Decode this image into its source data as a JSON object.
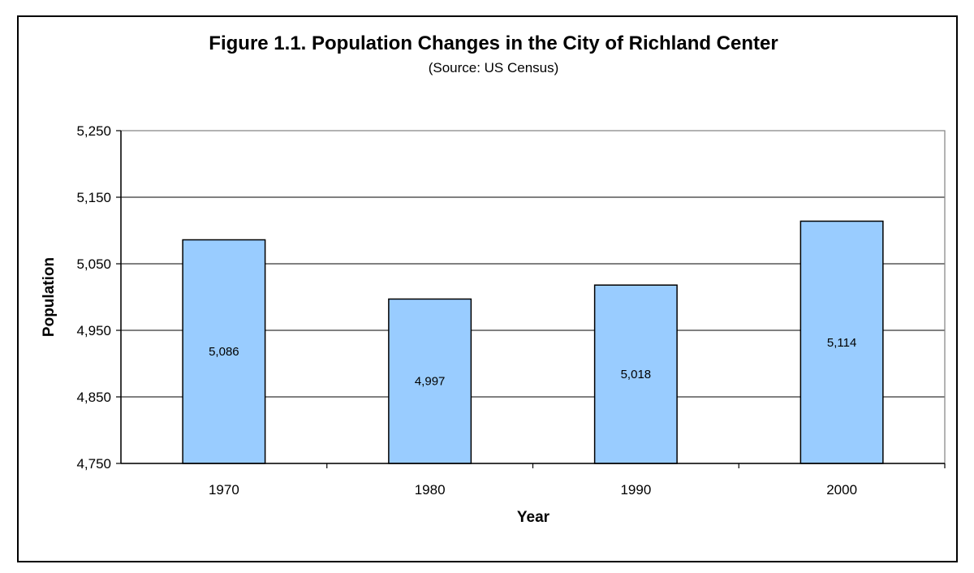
{
  "chart_data": {
    "type": "bar",
    "title": "Figure 1.1. Population Changes in the City of Richland Center",
    "subtitle": "(Source: US Census)",
    "categories": [
      "1970",
      "1980",
      "1990",
      "2000"
    ],
    "values": [
      5086,
      4997,
      5018,
      5114
    ],
    "data_labels": [
      "5,086",
      "4,997",
      "5,018",
      "5,114"
    ],
    "xlabel": "Year",
    "ylabel": "Population",
    "ylim": [
      4750,
      5250
    ],
    "yticks": [
      4750,
      4850,
      4950,
      5050,
      5150,
      5250
    ],
    "ytick_labels": [
      "4,750",
      "4,850",
      "4,950",
      "5,050",
      "5,150",
      "5,250"
    ],
    "grid": true,
    "legend": "none",
    "colors": {
      "bar_fill": "#99ccff",
      "bar_stroke": "#000000",
      "gridline": "#000000",
      "plot_border": "#808080",
      "background": "#ffffff"
    }
  }
}
